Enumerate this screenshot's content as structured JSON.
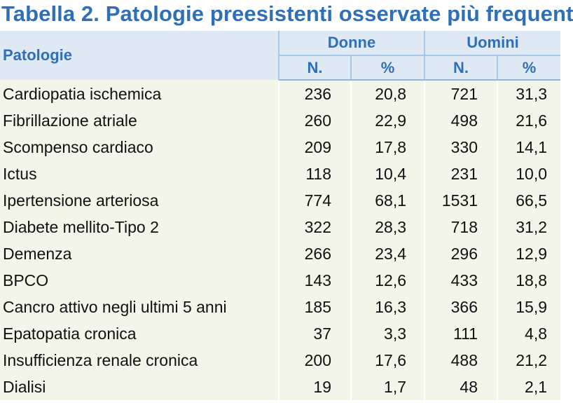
{
  "title": "Tabella 2. Patologie preesistenti osservate più frequent",
  "header": {
    "pathology_label": "Patologie",
    "women_label": "Donne",
    "men_label": "Uomini",
    "n_label": "N.",
    "pct_label": "%"
  },
  "rows": [
    {
      "name": "Cardiopatia ischemica",
      "w_n": "236",
      "w_pct": "20,8",
      "m_n": "721",
      "m_pct": "31,3"
    },
    {
      "name": "Fibrillazione atriale",
      "w_n": "260",
      "w_pct": "22,9",
      "m_n": "498",
      "m_pct": "21,6"
    },
    {
      "name": "Scompenso cardiaco",
      "w_n": "209",
      "w_pct": "17,8",
      "m_n": "330",
      "m_pct": "14,1"
    },
    {
      "name": "Ictus",
      "w_n": "118",
      "w_pct": "10,4",
      "m_n": "231",
      "m_pct": "10,0"
    },
    {
      "name": "Ipertensione arteriosa",
      "w_n": "774",
      "w_pct": "68,1",
      "m_n": "1531",
      "m_pct": "66,5"
    },
    {
      "name": "Diabete mellito-Tipo 2",
      "w_n": "322",
      "w_pct": "28,3",
      "m_n": "718",
      "m_pct": "31,2"
    },
    {
      "name": "Demenza",
      "w_n": "266",
      "w_pct": "23,4",
      "m_n": "296",
      "m_pct": "12,9"
    },
    {
      "name": "BPCO",
      "w_n": "143",
      "w_pct": "12,6",
      "m_n": "433",
      "m_pct": "18,8"
    },
    {
      "name": "Cancro attivo negli ultimi 5 anni",
      "w_n": "185",
      "w_pct": "16,3",
      "m_n": "366",
      "m_pct": "15,9"
    },
    {
      "name": "Epatopatia cronica",
      "w_n": "37",
      "w_pct": "3,3",
      "m_n": "111",
      "m_pct": "4,8"
    },
    {
      "name": "Insufficienza renale cronica",
      "w_n": "200",
      "w_pct": "17,6",
      "m_n": "488",
      "m_pct": "21,2"
    },
    {
      "name": "Dialisi",
      "w_n": "19",
      "w_pct": "1,7",
      "m_n": "48",
      "m_pct": "2,1"
    }
  ],
  "colors": {
    "title": "#2f6fb7",
    "header_bg": "#dfe9f3",
    "body_bg": "#f3f5e8"
  }
}
